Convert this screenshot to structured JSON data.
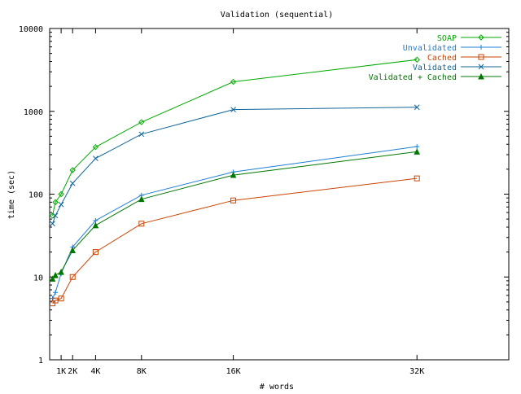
{
  "chart_data": {
    "type": "line",
    "title": "Validation (sequential)",
    "xlabel": "# words",
    "ylabel": "time (sec)",
    "x_scale": "linear",
    "y_scale": "log",
    "xlim": [
      0,
      40000
    ],
    "ylim": [
      1,
      10000
    ],
    "x_ticks": [
      {
        "value": 1000,
        "label": "1K"
      },
      {
        "value": 2000,
        "label": "2K"
      },
      {
        "value": 4000,
        "label": "4K"
      },
      {
        "value": 8000,
        "label": "8K"
      },
      {
        "value": 16000,
        "label": "16K"
      },
      {
        "value": 32000,
        "label": "32K"
      }
    ],
    "y_ticks": [
      {
        "value": 1,
        "label": "1"
      },
      {
        "value": 10,
        "label": "10"
      },
      {
        "value": 100,
        "label": "100"
      },
      {
        "value": 1000,
        "label": "1000"
      },
      {
        "value": 10000,
        "label": "10000"
      }
    ],
    "grid": false,
    "legend_position": "top-right",
    "series": [
      {
        "name": "SOAP",
        "color": "#00aa00",
        "marker": "diamond",
        "x": [
          250,
          500,
          1000,
          2000,
          4000,
          8000,
          16000,
          32000
        ],
        "y": [
          55,
          80,
          100,
          195,
          370,
          740,
          2270,
          4200
        ]
      },
      {
        "name": "Unvalidated",
        "color": "#1f7fd6",
        "marker": "plus",
        "x": [
          250,
          500,
          1000,
          2000,
          4000,
          8000,
          16000,
          32000
        ],
        "y": [
          5.5,
          6.5,
          11,
          23,
          48,
          97,
          185,
          375
        ]
      },
      {
        "name": "Cached",
        "color": "#cc4400",
        "marker": "square",
        "x": [
          250,
          500,
          1000,
          2000,
          4000,
          8000,
          16000,
          32000
        ],
        "y": [
          4.8,
          5.2,
          5.5,
          10,
          20,
          44,
          84,
          155
        ]
      },
      {
        "name": "Validated",
        "color": "#116699",
        "marker": "cross",
        "x": [
          250,
          500,
          1000,
          2000,
          4000,
          8000,
          16000,
          32000
        ],
        "y": [
          44,
          55,
          75,
          135,
          270,
          530,
          1050,
          1120
        ]
      },
      {
        "name": "Validated + Cached",
        "color": "#007700",
        "marker": "triangle",
        "x": [
          250,
          500,
          1000,
          2000,
          4000,
          8000,
          16000,
          32000
        ],
        "y": [
          9.5,
          10.5,
          11.5,
          21,
          42,
          87,
          170,
          325
        ]
      }
    ]
  }
}
